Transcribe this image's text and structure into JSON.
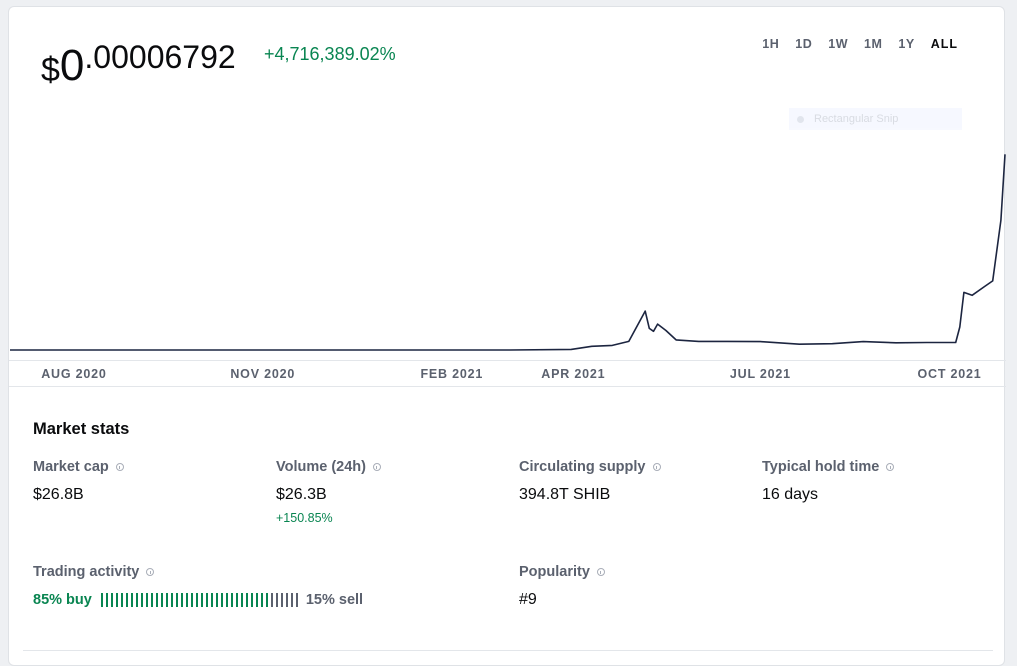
{
  "price": {
    "currency": "$",
    "integer": "0",
    "decimal": ".00006792"
  },
  "change": "+4,716,389.02%",
  "ranges": [
    "1H",
    "1D",
    "1W",
    "1M",
    "1Y",
    "ALL"
  ],
  "active_range": "ALL",
  "snip_overlay": {
    "label": "Rectangular Snip"
  },
  "chart_data": {
    "type": "line",
    "x_ticks": [
      "AUG 2020",
      "NOV 2020",
      "FEB 2021",
      "APR 2021",
      "JUL 2021",
      "OCT 2021"
    ],
    "series": [
      {
        "values": [
          [
            "2020-07-01",
            1.4e-09
          ],
          [
            "2020-10-01",
            2e-09
          ],
          [
            "2021-01-01",
            4e-09
          ],
          [
            "2021-03-01",
            8e-09
          ],
          [
            "2021-03-31",
            2e-07
          ],
          [
            "2021-04-10",
            1.3e-06
          ],
          [
            "2021-04-20",
            1.6e-06
          ],
          [
            "2021-04-28",
            3e-06
          ],
          [
            "2021-05-06",
            1.35e-05
          ],
          [
            "2021-05-08",
            7.5e-06
          ],
          [
            "2021-05-10",
            6.5e-06
          ],
          [
            "2021-05-12",
            9e-06
          ],
          [
            "2021-05-16",
            6.8e-06
          ],
          [
            "2021-05-21",
            3.5e-06
          ],
          [
            "2021-06-01",
            3e-06
          ],
          [
            "2021-06-15",
            3e-06
          ],
          [
            "2021-07-01",
            2.9e-06
          ],
          [
            "2021-07-20",
            2e-06
          ],
          [
            "2021-08-05",
            2.2e-06
          ],
          [
            "2021-08-20",
            2.9e-06
          ],
          [
            "2021-09-05",
            2.5e-06
          ],
          [
            "2021-09-20",
            2.6e-06
          ],
          [
            "2021-10-04",
            2.6e-06
          ],
          [
            "2021-10-06",
            8e-06
          ],
          [
            "2021-10-08",
            2e-05
          ],
          [
            "2021-10-12",
            1.9e-05
          ],
          [
            "2021-10-18",
            2.2e-05
          ],
          [
            "2021-10-22",
            2.4e-05
          ],
          [
            "2021-10-26",
            4.5e-05
          ],
          [
            "2021-10-28",
            6.792e-05
          ]
        ]
      }
    ],
    "ylim": [
      0,
      7.15e-05
    ]
  },
  "market_stats": {
    "title": "Market stats",
    "market_cap": {
      "label": "Market cap",
      "value": "$26.8B"
    },
    "volume": {
      "label": "Volume (24h)",
      "value": "$26.3B",
      "change": "+150.85%"
    },
    "supply": {
      "label": "Circulating supply",
      "value": "394.8T SHIB"
    },
    "hold_time": {
      "label": "Typical hold time",
      "value": "16 days"
    },
    "trading": {
      "label": "Trading activity",
      "buy": "85% buy",
      "sell": "15% sell",
      "buy_fraction": 0.85
    },
    "popularity": {
      "label": "Popularity",
      "value": "#9"
    }
  },
  "colors": {
    "positive": "#098551",
    "line": "#1c2540",
    "muted": "#5b616e"
  }
}
